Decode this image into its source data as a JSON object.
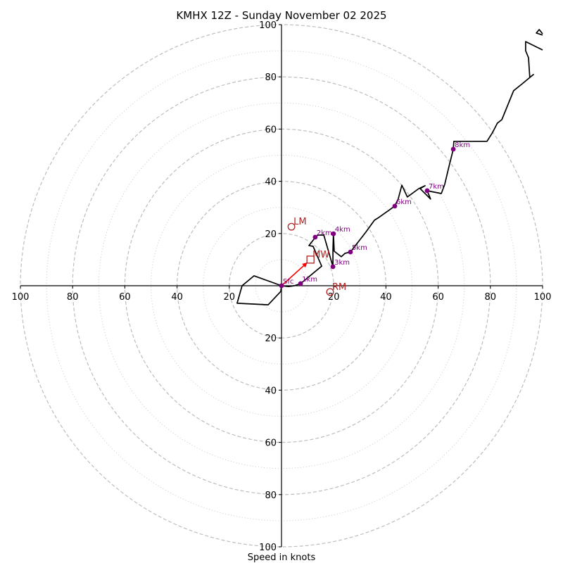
{
  "chart_data": {
    "type": "line",
    "subtype": "hodograph",
    "title": "KMHX 12Z - Sunday November 02 2025",
    "xlabel": "Speed in knots",
    "ylabel": "",
    "xlim": [
      -100,
      100
    ],
    "ylim": [
      -100,
      100
    ],
    "ring_major": [
      20,
      40,
      60,
      80,
      100
    ],
    "ring_minor": [
      10,
      30,
      50,
      70,
      90
    ],
    "x_tick_labels": [
      "100",
      "80",
      "60",
      "40",
      "20",
      "20",
      "40",
      "60",
      "80",
      "100"
    ],
    "x_tick_values": [
      -100,
      -80,
      -60,
      -40,
      -20,
      20,
      40,
      60,
      80,
      100
    ],
    "y_tick_labels": [
      "100",
      "80",
      "60",
      "40",
      "20",
      "20",
      "40",
      "60",
      "80",
      "100"
    ],
    "y_tick_values": [
      100,
      80,
      60,
      40,
      20,
      -20,
      -40,
      -60,
      -80,
      -100
    ],
    "grid": true,
    "trace": {
      "u": [
        0,
        -0.3,
        -5.1,
        -17,
        -15.1,
        -10.5,
        0,
        2.7,
        4.9,
        7.3,
        15.4,
        12.1,
        10.5,
        12.4,
        12.9,
        14,
        16.2,
        19.7,
        19.7,
        19.9,
        20.2,
        22.9,
        24.3,
        26.4,
        32.3,
        35.6,
        36.9,
        40.7,
        43.4,
        44.7,
        46.1,
        48.2,
        52.6,
        55,
        53.1,
        57.1,
        55.8,
        61.2,
        62.5,
        63.9,
        65.8,
        66,
        78.7,
        80.9,
        82.7,
        84.4,
        88.9,
        91.9,
        96.5,
        95.1,
        94.6,
        93.5,
        93.5,
        100
      ],
      "v": [
        0,
        -2.2,
        -7.3,
        -6.7,
        0,
        3.8,
        0,
        -0.3,
        0,
        0.8,
        7.5,
        15.1,
        15.4,
        17.8,
        18.6,
        19.4,
        19.4,
        7.3,
        13.7,
        19.9,
        13.2,
        11.1,
        12.4,
        12.9,
        20.5,
        25.1,
        25.9,
        28.6,
        30.5,
        33.2,
        38.5,
        34,
        37.2,
        38.3,
        37.2,
        33.2,
        36.4,
        35.3,
        38.8,
        44.7,
        52.3,
        55.3,
        55.3,
        58.8,
        62.3,
        63.6,
        74.7,
        77.1,
        80.9,
        79.8,
        87.3,
        90,
        93.5,
        90.3
      ],
      "color": "#000000"
    },
    "trace_extra": {
      "u": [
        100,
        97.6,
        98.7,
        100
      ],
      "v": [
        96,
        96.8,
        98.1,
        96.5
      ]
    },
    "height_markers": [
      {
        "label": "Sfc",
        "u": 0,
        "v": 0
      },
      {
        "label": "1km",
        "u": 7.3,
        "v": 0.8
      },
      {
        "label": "2km",
        "u": 12.9,
        "v": 18.6
      },
      {
        "label": "3km",
        "u": 19.7,
        "v": 7.3
      },
      {
        "label": "4km",
        "u": 19.9,
        "v": 19.9
      },
      {
        "label": "5km",
        "u": 26.4,
        "v": 12.9
      },
      {
        "label": "6km",
        "u": 43.4,
        "v": 30.5
      },
      {
        "label": "7km",
        "u": 55.8,
        "v": 36.4
      },
      {
        "label": "8km",
        "u": 65.8,
        "v": 52.3
      }
    ],
    "height_marker_color": "#800080",
    "storm_markers": [
      {
        "label": "LM",
        "u": 3.8,
        "v": 22.6,
        "shape": "circle"
      },
      {
        "label": "MW",
        "u": 11.1,
        "v": 10.0,
        "shape": "square"
      },
      {
        "label": "RM",
        "u": 18.6,
        "v": -2.4,
        "shape": "circle"
      }
    ],
    "storm_marker_color": "#b22222",
    "mean_wind_arrow": {
      "from_u": 0,
      "from_v": 0,
      "to_u": 11.1,
      "to_v": 10.0,
      "color": "#ff0000"
    }
  }
}
